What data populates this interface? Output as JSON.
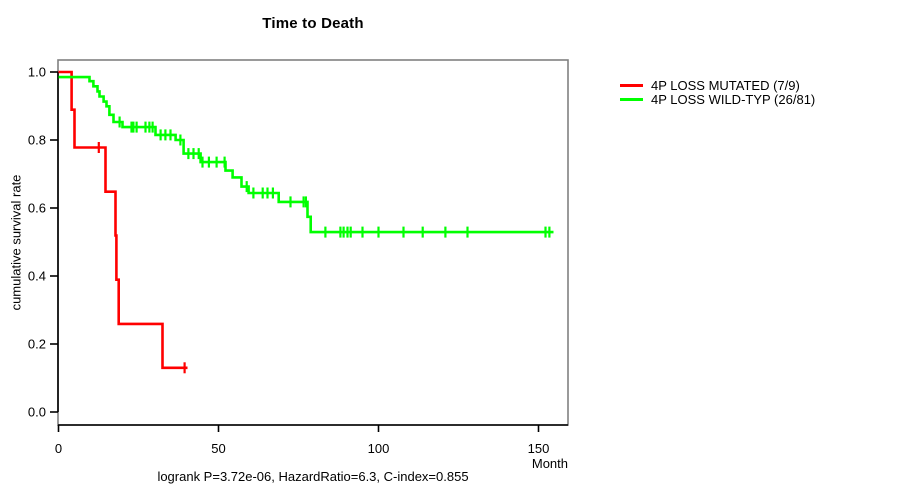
{
  "chart_data": {
    "type": "line",
    "subtype": "kaplan-meier-step-curves",
    "title": "Time to Death",
    "xlabel": "Month",
    "ylabel": "cumulative survival rate",
    "annotation": "logrank P=3.72e-06, HazardRatio=6.3, C-index=0.855",
    "xlim": [
      0,
      159.4
    ],
    "ylim": [
      0.0,
      1.0
    ],
    "grid": false,
    "legend_position": "outside-right-top",
    "box_color": "#808080",
    "axis_color": "#000000",
    "xticks": [
      {
        "v": 0,
        "label": "0"
      },
      {
        "v": 50,
        "label": "50"
      },
      {
        "v": 100,
        "label": "100"
      },
      {
        "v": 150,
        "label": "150"
      }
    ],
    "yticks": [
      {
        "v": 0.0,
        "label": "0.0"
      },
      {
        "v": 0.2,
        "label": "0.2"
      },
      {
        "v": 0.4,
        "label": "0.4"
      },
      {
        "v": 0.6,
        "label": "0.6"
      },
      {
        "v": 0.8,
        "label": "0.8"
      },
      {
        "v": 1.0,
        "label": "1.0"
      }
    ],
    "series": [
      {
        "name": "4P LOSS MUTATED (7/9)",
        "color": "#ff0000",
        "steps": [
          [
            0,
            1.0
          ],
          [
            4.1,
            0.889
          ],
          [
            5.0,
            0.778
          ],
          [
            14.7,
            0.648
          ],
          [
            17.8,
            0.519
          ],
          [
            18.1,
            0.389
          ],
          [
            18.8,
            0.259
          ],
          [
            32.5,
            0.13
          ]
        ],
        "end_month": 40.3,
        "censor_marks": [
          [
            12.6,
            0.778
          ],
          [
            39.4,
            0.13
          ]
        ]
      },
      {
        "name": "4P LOSS WILD-TYP (26/81)",
        "color": "#00ff00",
        "steps": [
          [
            0,
            0.985
          ],
          [
            9.7,
            0.973
          ],
          [
            10.9,
            0.958
          ],
          [
            12.2,
            0.943
          ],
          [
            12.8,
            0.928
          ],
          [
            14.1,
            0.913
          ],
          [
            15.0,
            0.899
          ],
          [
            15.9,
            0.874
          ],
          [
            17.2,
            0.853
          ],
          [
            20.0,
            0.838
          ],
          [
            30.3,
            0.815
          ],
          [
            36.6,
            0.8
          ],
          [
            39.1,
            0.76
          ],
          [
            44.4,
            0.735
          ],
          [
            52.2,
            0.71
          ],
          [
            54.4,
            0.69
          ],
          [
            57.2,
            0.663
          ],
          [
            59.4,
            0.644
          ],
          [
            68.8,
            0.618
          ],
          [
            77.8,
            0.574
          ],
          [
            78.8,
            0.529
          ]
        ],
        "end_month": 154.7,
        "censor_marks": [
          [
            19.1,
            0.853
          ],
          [
            22.8,
            0.838
          ],
          [
            23.4,
            0.838
          ],
          [
            24.4,
            0.838
          ],
          [
            27.2,
            0.838
          ],
          [
            28.4,
            0.838
          ],
          [
            29.4,
            0.838
          ],
          [
            31.9,
            0.815
          ],
          [
            33.4,
            0.815
          ],
          [
            35.0,
            0.815
          ],
          [
            38.1,
            0.8
          ],
          [
            40.6,
            0.76
          ],
          [
            42.2,
            0.76
          ],
          [
            43.8,
            0.76
          ],
          [
            45.0,
            0.735
          ],
          [
            47.0,
            0.735
          ],
          [
            49.4,
            0.735
          ],
          [
            51.9,
            0.735
          ],
          [
            58.8,
            0.663
          ],
          [
            60.9,
            0.644
          ],
          [
            63.8,
            0.644
          ],
          [
            65.3,
            0.644
          ],
          [
            67.0,
            0.644
          ],
          [
            72.5,
            0.618
          ],
          [
            76.6,
            0.618
          ],
          [
            77.3,
            0.618
          ],
          [
            83.4,
            0.529
          ],
          [
            88.1,
            0.529
          ],
          [
            89.1,
            0.529
          ],
          [
            90.3,
            0.529
          ],
          [
            91.3,
            0.529
          ],
          [
            95.0,
            0.529
          ],
          [
            100.0,
            0.529
          ],
          [
            107.8,
            0.529
          ],
          [
            113.8,
            0.529
          ],
          [
            120.9,
            0.529
          ],
          [
            127.8,
            0.529
          ],
          [
            152.2,
            0.529
          ],
          [
            153.4,
            0.529
          ]
        ]
      }
    ]
  }
}
